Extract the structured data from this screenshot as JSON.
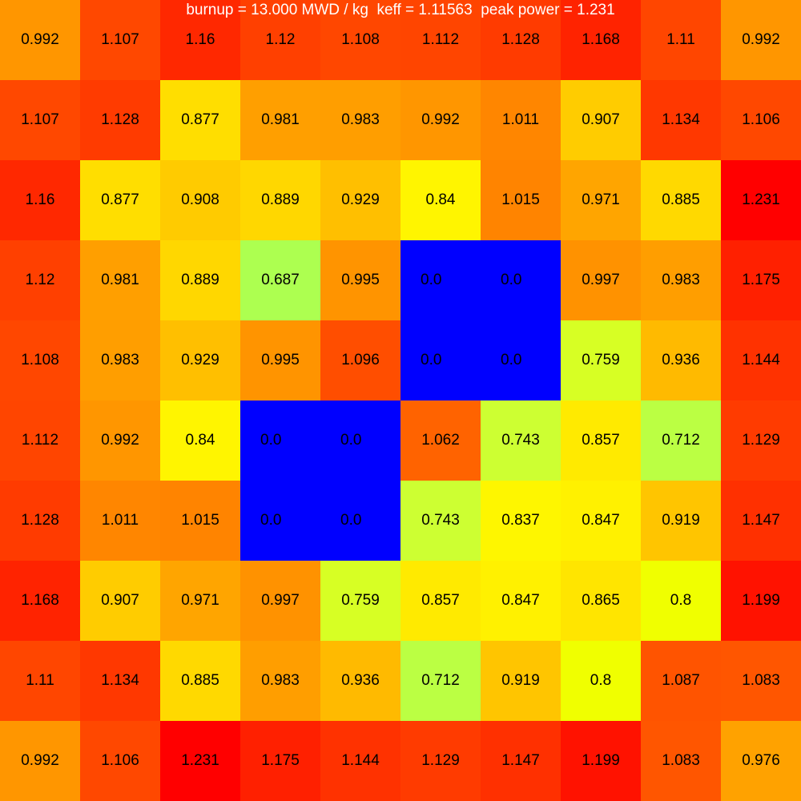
{
  "chart_data": {
    "type": "heatmap",
    "title": "burnup = 13.000 MWD / kg  keff = 1.11563  peak power = 1.231",
    "rows": 10,
    "cols": 10,
    "colormap": "autumn-style: low power -> green/yellow, high power -> red; 0.0 cells shown in blue",
    "zero_color": "#0000ff",
    "values": [
      [
        0.992,
        1.107,
        1.16,
        1.12,
        1.108,
        1.112,
        1.128,
        1.168,
        1.11,
        0.992
      ],
      [
        1.107,
        1.128,
        0.877,
        0.981,
        0.983,
        0.992,
        1.011,
        0.907,
        1.134,
        1.106
      ],
      [
        1.16,
        0.877,
        0.908,
        0.889,
        0.929,
        0.84,
        1.015,
        0.971,
        0.885,
        1.231
      ],
      [
        1.12,
        0.981,
        0.889,
        0.687,
        0.995,
        0.0,
        0.0,
        0.997,
        0.983,
        1.175
      ],
      [
        1.108,
        0.983,
        0.929,
        0.995,
        1.096,
        0.0,
        0.0,
        0.759,
        0.936,
        1.144
      ],
      [
        1.112,
        0.992,
        0.84,
        0.0,
        0.0,
        1.062,
        0.743,
        0.857,
        0.712,
        1.129
      ],
      [
        1.128,
        1.011,
        1.015,
        0.0,
        0.0,
        0.743,
        0.837,
        0.847,
        0.919,
        1.147
      ],
      [
        1.168,
        0.907,
        0.971,
        0.997,
        0.759,
        0.857,
        0.847,
        0.865,
        0.8,
        1.199
      ],
      [
        1.11,
        1.134,
        0.885,
        0.983,
        0.936,
        0.712,
        0.919,
        0.8,
        1.087,
        1.083
      ],
      [
        0.992,
        1.106,
        1.231,
        1.175,
        1.144,
        1.129,
        1.147,
        1.199,
        1.083,
        0.976
      ]
    ],
    "labels": [
      [
        "0.992",
        "1.107",
        "1.16",
        "1.12",
        "1.108",
        "1.112",
        "1.128",
        "1.168",
        "1.11",
        "0.992"
      ],
      [
        "1.107",
        "1.128",
        "0.877",
        "0.981",
        "0.983",
        "0.992",
        "1.011",
        "0.907",
        "1.134",
        "1.106"
      ],
      [
        "1.16",
        "0.877",
        "0.908",
        "0.889",
        "0.929",
        "0.84",
        "1.015",
        "0.971",
        "0.885",
        "1.231"
      ],
      [
        "1.12",
        "0.981",
        "0.889",
        "0.687",
        "0.995",
        "0.0",
        "0.0",
        "0.997",
        "0.983",
        "1.175"
      ],
      [
        "1.108",
        "0.983",
        "0.929",
        "0.995",
        "1.096",
        "0.0",
        "0.0",
        "0.759",
        "0.936",
        "1.144"
      ],
      [
        "1.112",
        "0.992",
        "0.84",
        "0.0",
        "0.0",
        "1.062",
        "0.743",
        "0.857",
        "0.712",
        "1.129"
      ],
      [
        "1.128",
        "1.011",
        "1.015",
        "0.0",
        "0.0",
        "0.743",
        "0.837",
        "0.847",
        "0.919",
        "1.147"
      ],
      [
        "1.168",
        "0.907",
        "0.971",
        "0.997",
        "0.759",
        "0.857",
        "0.847",
        "0.865",
        "0.8",
        "1.199"
      ],
      [
        "1.11",
        "1.134",
        "0.885",
        "0.983",
        "0.936",
        "0.712",
        "0.919",
        "0.8",
        "1.087",
        "1.083"
      ],
      [
        "0.992",
        "1.106",
        "1.231",
        "1.175",
        "1.144",
        "1.129",
        "1.147",
        "1.199",
        "1.083",
        "0.976"
      ]
    ]
  }
}
